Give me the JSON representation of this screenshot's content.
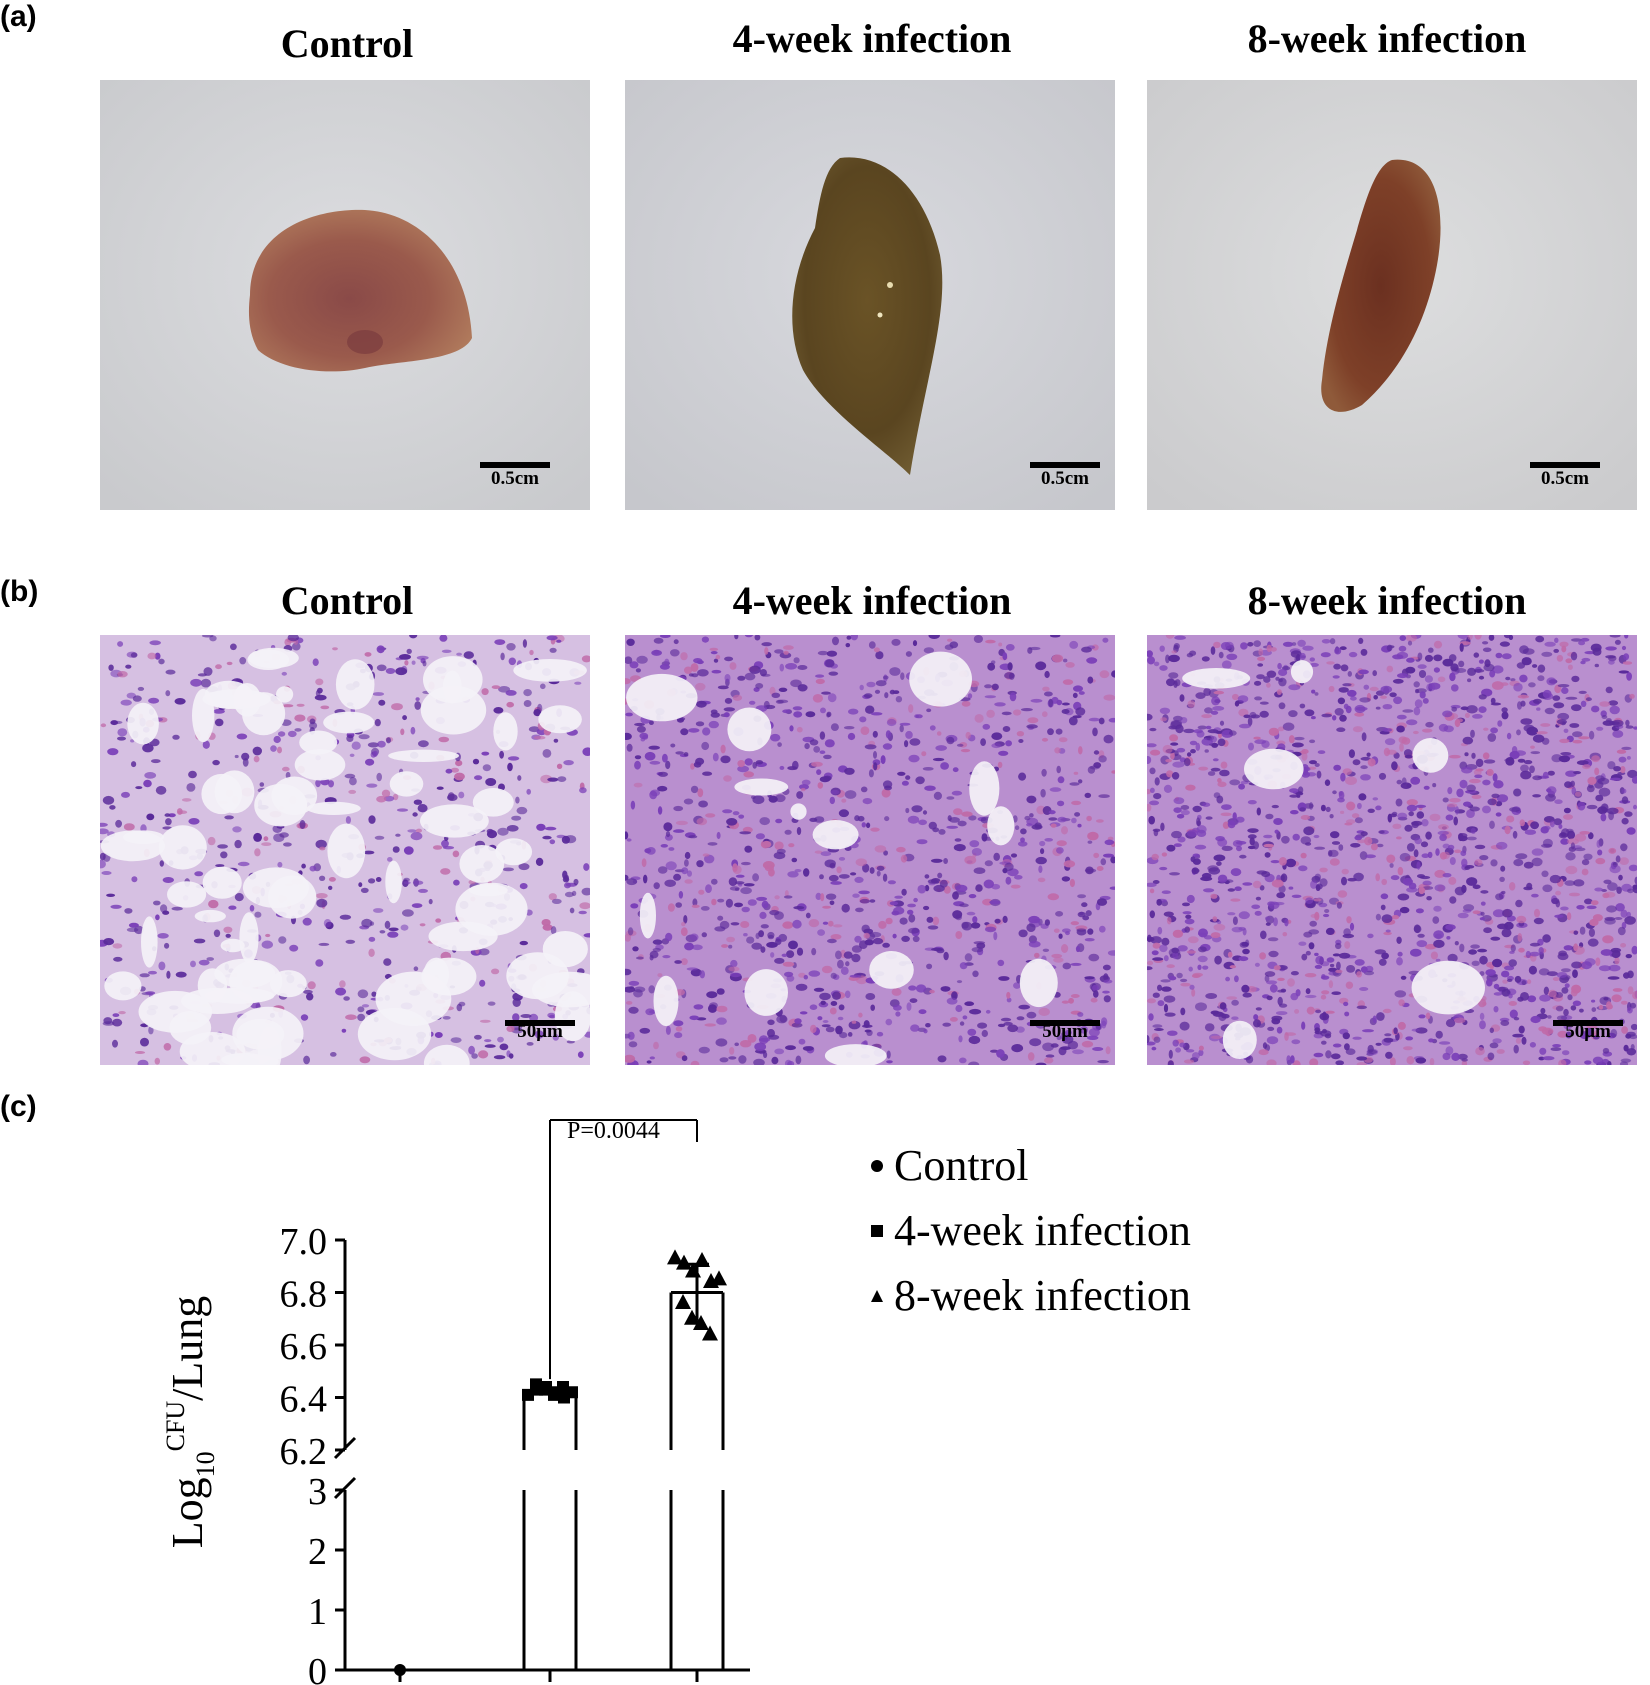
{
  "panels": {
    "a": {
      "label": "(a)",
      "titles": [
        "Control",
        "4-week infection",
        "8-week infection"
      ],
      "scale_label": "0.5cm"
    },
    "b": {
      "label": "(b)",
      "titles": [
        "Control",
        "4-week infection",
        "8-week infection"
      ],
      "scale_label": "50μm"
    },
    "c": {
      "label": "(c)"
    }
  },
  "chart_data": {
    "type": "bar",
    "title": "",
    "ylabel_base": "Log",
    "ylabel_sub": "10",
    "ylabel_sup": "CFU",
    "ylabel_tail": "/Lung",
    "xlabel": "",
    "categories": [
      "Control",
      "4-week infection",
      "8-week infection"
    ],
    "values": [
      0,
      6.42,
      6.8
    ],
    "points": [
      [
        0
      ],
      [
        6.41,
        6.43,
        6.44,
        6.42,
        6.4,
        6.45,
        6.43,
        6.41,
        6.44,
        6.42
      ],
      [
        6.93,
        6.91,
        6.88,
        6.92,
        6.84,
        6.76,
        6.7,
        6.68,
        6.64,
        6.85
      ]
    ],
    "markers": [
      "circle",
      "square",
      "triangle"
    ],
    "axis_break": true,
    "yticks_lower": [
      "0",
      "1",
      "2",
      "3"
    ],
    "yticks_upper": [
      "6.2",
      "6.4",
      "6.6",
      "6.8",
      "7.0"
    ],
    "ylim_lower": [
      0,
      3
    ],
    "ylim_upper": [
      6.2,
      7.0
    ],
    "significance": {
      "groups": [
        "4-week infection",
        "8-week infection"
      ],
      "label": "P=0.0044"
    },
    "legend": [
      "Control",
      "4-week infection",
      "8-week infection"
    ],
    "legend_position": "right",
    "grid": false
  }
}
